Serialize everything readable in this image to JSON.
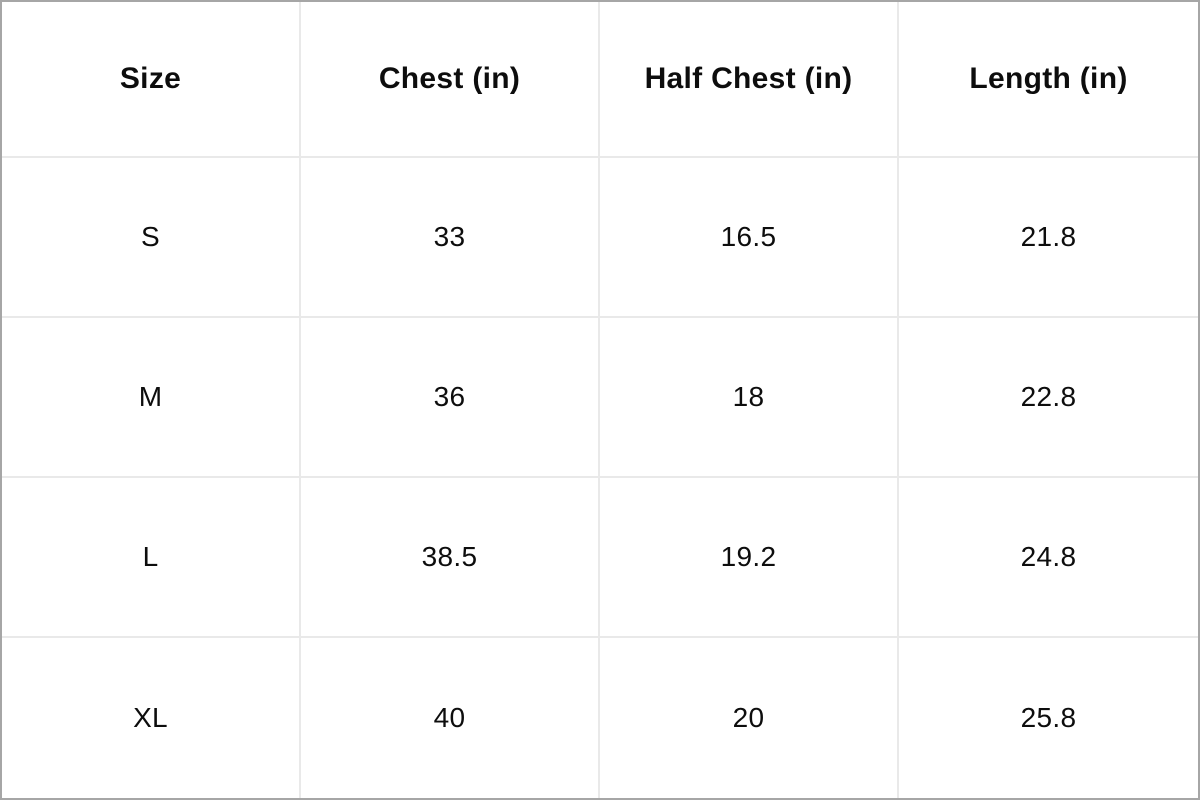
{
  "table": {
    "columns": [
      "Size",
      "Chest (in)",
      "Half Chest (in)",
      "Length (in)"
    ],
    "rows": [
      [
        "S",
        "33",
        "16.5",
        "21.8"
      ],
      [
        "M",
        "36",
        "18",
        "22.8"
      ],
      [
        "L",
        "38.5",
        "19.2",
        "24.8"
      ],
      [
        "XL",
        "40",
        "20",
        "25.8"
      ]
    ]
  },
  "colors": {
    "background": "#ffffff",
    "text": "#0d0d0d",
    "inner_border": "#e9e9e9",
    "outer_border": "#a6a6a6"
  },
  "chart_data": {
    "type": "table",
    "title": "",
    "columns": [
      "Size",
      "Chest (in)",
      "Half Chest (in)",
      "Length (in)"
    ],
    "rows": [
      {
        "size": "S",
        "chest_in": 33,
        "half_chest_in": 16.5,
        "length_in": 21.8
      },
      {
        "size": "M",
        "chest_in": 36,
        "half_chest_in": 18,
        "length_in": 22.8
      },
      {
        "size": "L",
        "chest_in": 38.5,
        "half_chest_in": 19.2,
        "length_in": 24.8
      },
      {
        "size": "XL",
        "chest_in": 40,
        "half_chest_in": 20,
        "length_in": 25.8
      }
    ],
    "layout": {
      "grid": true,
      "header_bold": true,
      "equal_columns": 4
    }
  }
}
